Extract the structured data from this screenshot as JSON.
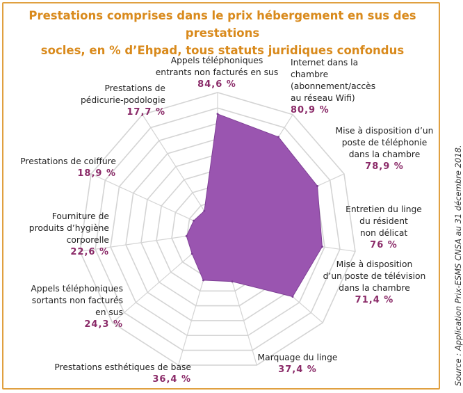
{
  "title_line1": "Prestations comprises dans le prix hébergement en sus des prestations",
  "title_line2": "socles, en % d’Ehpad, tous statuts juridiques confondus",
  "source": "Source : Application Prix-ESMS CNSA au 31 décembre 2018.",
  "colors": {
    "title": "#d98a1c",
    "polygon": "#9a55b0",
    "value": "#8a2a68",
    "frame": "#e0a040",
    "grid": "#d4d4d4"
  },
  "chart_data": {
    "type": "radar",
    "rlim": [
      0,
      100
    ],
    "grid": true,
    "axes": [
      {
        "label_lines": [
          "Appels téléphoniques",
          "entrants non facturés en sus"
        ],
        "value": 84.6,
        "value_text": "84,6 %"
      },
      {
        "label_lines": [
          "Internet dans la",
          "chambre",
          "(abonnement/accès",
          "au réseau Wifi)"
        ],
        "value": 80.9,
        "value_text": "80,9 %"
      },
      {
        "label_lines": [
          "Mise à disposition d’un",
          "poste de téléphonie",
          "dans la chambre"
        ],
        "value": 78.9,
        "value_text": "78,9 %"
      },
      {
        "label_lines": [
          "Entretien du linge",
          "du résident",
          "non délicat"
        ],
        "value": 76,
        "value_text": "76 %"
      },
      {
        "label_lines": [
          "Mise à disposition",
          "d’un poste de télévision",
          "dans la chambre"
        ],
        "value": 71.4,
        "value_text": "71,4 %"
      },
      {
        "label_lines": [
          "Marquage du linge"
        ],
        "value": 37.4,
        "value_text": "37,4 %"
      },
      {
        "label_lines": [
          "Prestations esthétiques de base"
        ],
        "value": 36.4,
        "value_text": "36,4 %"
      },
      {
        "label_lines": [
          "Appels téléphoniques",
          "sortants non facturés",
          "en sus"
        ],
        "value": 24.3,
        "value_text": "24,3 %"
      },
      {
        "label_lines": [
          "Fourniture de",
          "produits d’hygiène",
          "corporelle"
        ],
        "value": 22.6,
        "value_text": "22,6 %"
      },
      {
        "label_lines": [
          "Prestations de coiffure"
        ],
        "value": 18.9,
        "value_text": "18,9 %"
      },
      {
        "label_lines": [
          "Prestations de",
          "pédicurie-podologie"
        ],
        "value": 17.7,
        "value_text": "17,7 %"
      }
    ]
  }
}
